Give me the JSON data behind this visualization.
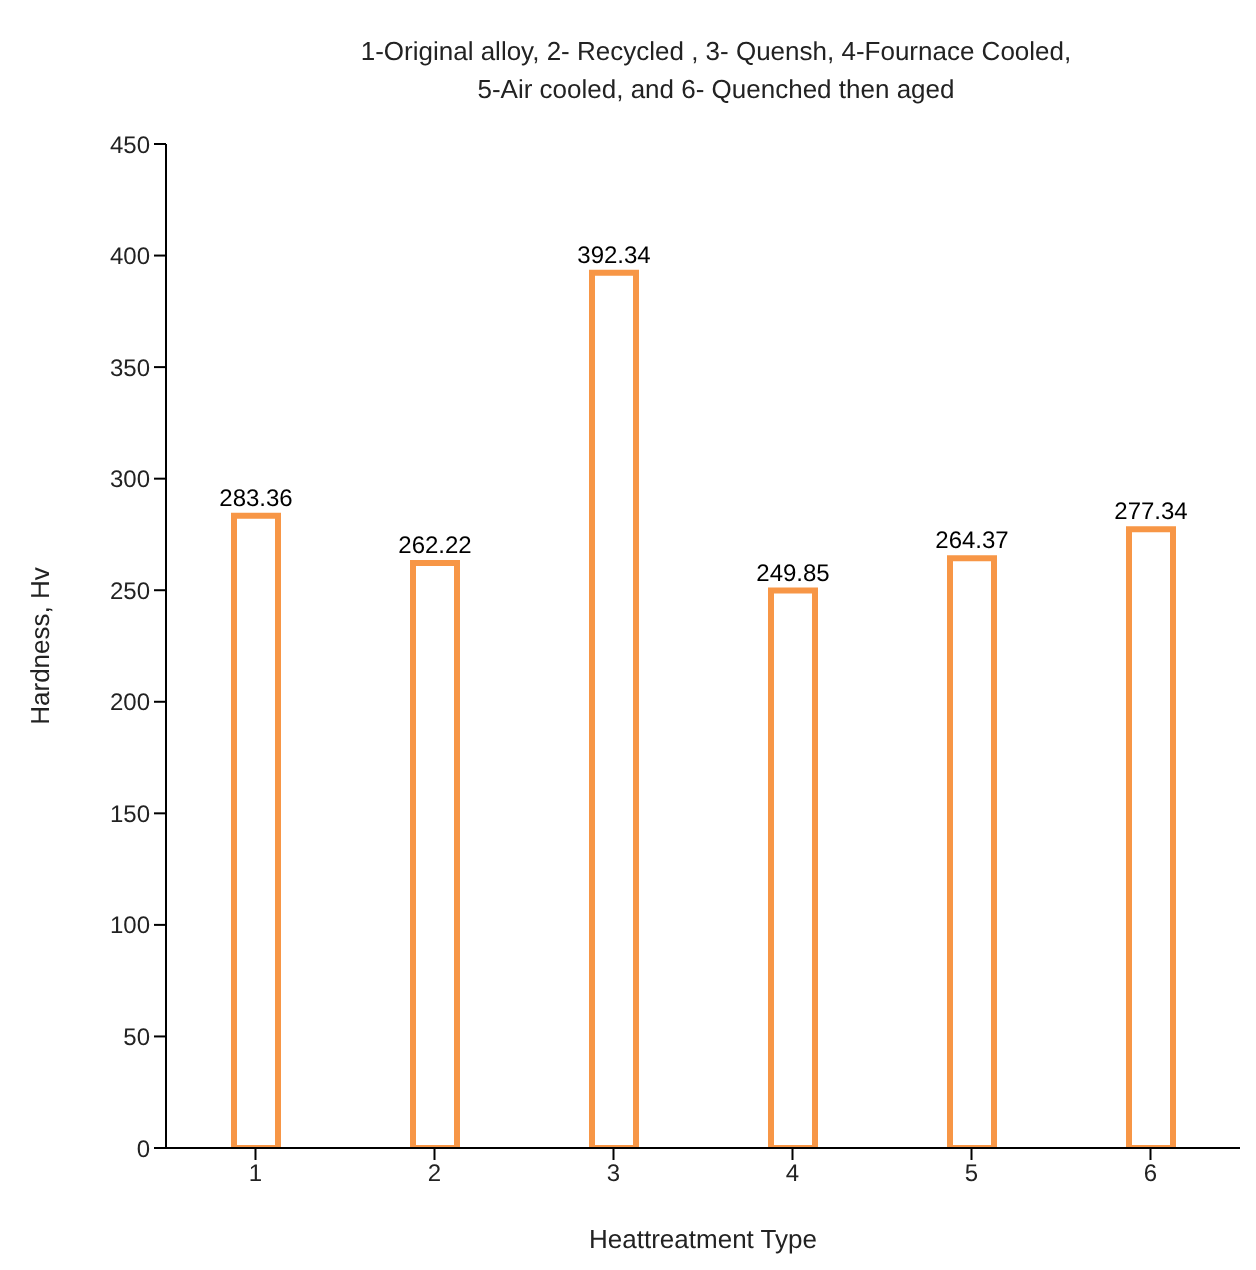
{
  "chart_data": {
    "type": "bar",
    "title": "1-Original alloy, 2- Recycled , 3- Quensh, 4-Fournace Cooled,\n5-Air cooled, and 6- Quenched then aged",
    "xlabel": "Heattreatment Type",
    "ylabel": "Hardness, Hv",
    "categories": [
      "1",
      "2",
      "3",
      "4",
      "5",
      "6"
    ],
    "values": [
      283.36,
      262.22,
      392.34,
      249.85,
      264.37,
      277.34
    ],
    "color": "#f79646",
    "data_labels": true,
    "grid": false,
    "ylim": [
      0,
      450
    ],
    "yticks": [
      0,
      50,
      100,
      150,
      200,
      250,
      300,
      350,
      400,
      450
    ]
  }
}
